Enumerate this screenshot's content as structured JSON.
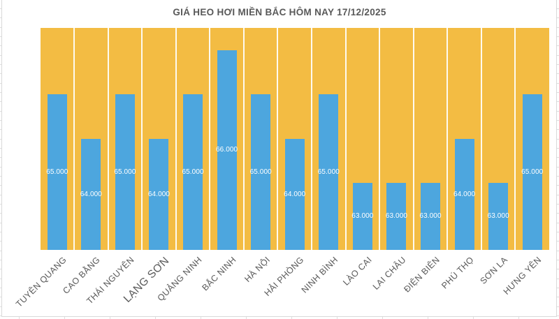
{
  "chart_data": {
    "type": "bar",
    "title": "GIÁ HEO HƠI MIỀN BẮC HÔM NAY 17/12/2025",
    "xlabel": "",
    "ylabel": "",
    "legend": "none",
    "grid": "vertical white separators between categories",
    "plot_background": "#F3BC43",
    "bar_color": "#4DA6DE",
    "title_color": "#595959",
    "axis_label_color": "#595959",
    "value_label_color": "#FFFFFF",
    "ylim": [
      61500,
      66500
    ],
    "categories": [
      "TUYÊN QUANG",
      "CAO BẰNG",
      "THÁI NGUYÊN",
      "LẠNG SƠN",
      "QUẢNG NINH",
      "BẮC NINH",
      "HÀ NỘI",
      "HẢI PHÒNG",
      "NINH BÌNH",
      "LÀO CAI",
      "LAI CHÂU",
      "ĐIỆN BIÊN",
      "PHÚ THỌ",
      "SƠN LA",
      "HƯNG YÊN"
    ],
    "values": [
      65000,
      64000,
      65000,
      64000,
      65000,
      66000,
      65000,
      64000,
      65000,
      63000,
      63000,
      63000,
      64000,
      63000,
      65000
    ],
    "value_labels": [
      "65.000",
      "64.000",
      "65.000",
      "64.000",
      "65.000",
      "66.000",
      "65.000",
      "64.000",
      "65.000",
      "63.000",
      "63.000",
      "63.000",
      "64.000",
      "63.000",
      "65.000"
    ],
    "emphasized_category": "LẠNG SƠN"
  }
}
